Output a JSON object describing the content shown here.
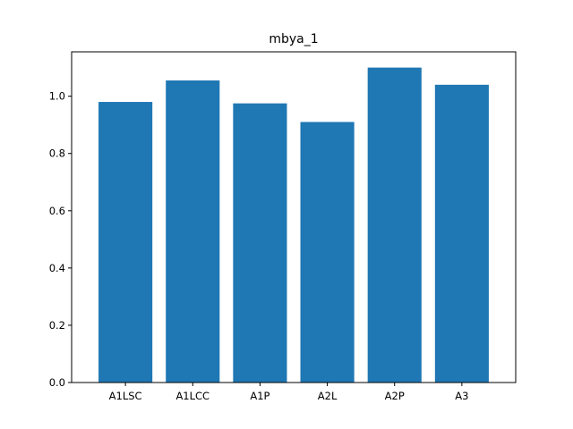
{
  "chart_data": {
    "type": "bar",
    "title": "mbya_1",
    "xlabel": "",
    "ylabel": "",
    "categories": [
      "A1LSC",
      "A1LCC",
      "A1P",
      "A2L",
      "A2P",
      "A3"
    ],
    "values": [
      0.98,
      1.055,
      0.975,
      0.91,
      1.1,
      1.04
    ],
    "ylim": [
      0,
      1.155
    ],
    "yticks": [
      0.0,
      0.2,
      0.4,
      0.6,
      0.8,
      1.0
    ],
    "ytick_labels": [
      "0.0",
      "0.2",
      "0.4",
      "0.6",
      "0.8",
      "1.0"
    ],
    "bar_color": "#1f77b4",
    "grid": false,
    "legend": "none"
  }
}
